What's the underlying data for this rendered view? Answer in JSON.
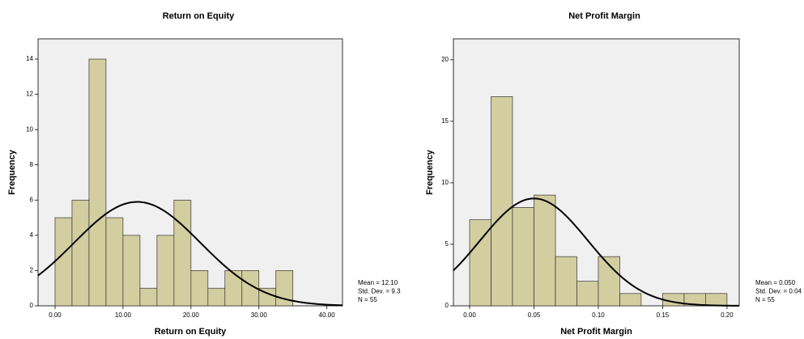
{
  "chart_data": [
    {
      "type": "histogram",
      "title": "Return on Equity",
      "x_label": "Return on Equity",
      "y_label": "Frequency",
      "bins": [
        0,
        2.5,
        5,
        7.5,
        10,
        12.5,
        15,
        17.5,
        20,
        22.5,
        25,
        27.5,
        30,
        32.5,
        35
      ],
      "values": [
        5,
        6,
        14,
        5,
        4,
        1,
        4,
        6,
        2,
        1,
        2,
        2,
        1,
        2
      ],
      "color": "#d3cea0",
      "xlim": [
        -2.5,
        42.3
      ],
      "xticks": [
        {
          "value": 0,
          "label": "0.00"
        },
        {
          "value": 10,
          "label": "10.00"
        },
        {
          "value": 20,
          "label": "20.00"
        },
        {
          "value": 30,
          "label": "30.00"
        },
        {
          "value": 40,
          "label": "40.00"
        }
      ],
      "ylim": [
        0,
        15.15
      ],
      "yticks": [
        0,
        2,
        4,
        6,
        8,
        10,
        12,
        14
      ],
      "normal_curve": {
        "mean": 12.1,
        "sd": 9.3,
        "n": 55
      },
      "stats": [
        "Mean = 12.10",
        "Std. Dev. = 9.3",
        "N = 55"
      ]
    },
    {
      "type": "histogram",
      "title": "Net Profit Margin",
      "x_label": "Net Profit Margin",
      "y_label": "Frequency",
      "bins": [
        0,
        0.0167,
        0.0333,
        0.05,
        0.0667,
        0.0833,
        0.1,
        0.1167,
        0.1333,
        0.15,
        0.1667,
        0.1833,
        0.2
      ],
      "values": [
        7,
        17,
        8,
        9,
        4,
        2,
        4,
        1,
        0,
        1,
        1,
        1
      ],
      "color": "#d3cea0",
      "xlim": [
        -0.0126,
        0.2095
      ],
      "xticks": [
        {
          "value": 0,
          "label": "0.00"
        },
        {
          "value": 0.05,
          "label": "0.05"
        },
        {
          "value": 0.1,
          "label": "0.10"
        },
        {
          "value": 0.15,
          "label": "0.15"
        },
        {
          "value": 0.2,
          "label": "0.20"
        }
      ],
      "ylim": [
        0,
        21.7
      ],
      "yticks": [
        0,
        5,
        10,
        15,
        20
      ],
      "normal_curve": {
        "mean": 0.05,
        "sd": 0.042,
        "n": 55
      },
      "stats": [
        "Mean = 0.050",
        "Std. Dev. = 0.04",
        "N = 55"
      ]
    }
  ]
}
